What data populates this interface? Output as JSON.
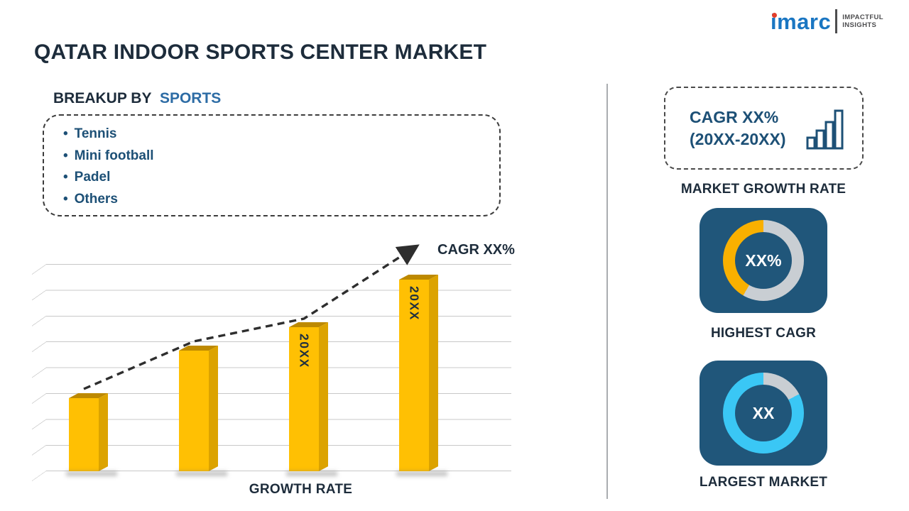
{
  "header": {
    "title": "QATAR INDOOR SPORTS CENTER MARKET",
    "logo": {
      "brand": "imarc",
      "tagline1": "IMPACTFUL",
      "tagline2": "INSIGHTS"
    }
  },
  "breakup": {
    "heading_prefix": "BREAKUP BY",
    "heading_highlight": "SPORTS",
    "bullet": "•",
    "items": [
      "Tennis",
      "Mini football",
      "Padel",
      "Others"
    ]
  },
  "chart_data": {
    "type": "bar",
    "title": "",
    "categories": [
      "",
      "",
      "20XX",
      "20XX"
    ],
    "values": [
      38,
      63,
      75,
      100
    ],
    "ylim": [
      0,
      100
    ],
    "grid": true,
    "bar_color": "#FFC003",
    "xlabel": "GROWTH RATE",
    "ylabel": "",
    "annotation": "CAGR XX%",
    "trend_line": {
      "style": "dashed-arrow",
      "direction": "up"
    }
  },
  "sidebar": {
    "growth_box": {
      "line1": "CAGR XX%",
      "line2": "(20XX-20XX)"
    },
    "market_growth_label": "MARKET GROWTH RATE",
    "highest_cagr": {
      "value": "XX%",
      "label": "HIGHEST CAGR",
      "accent": "#F9B000",
      "gray_deg": 210
    },
    "largest_market": {
      "value": "XX",
      "label": "LARGEST MARKET",
      "accent": "#3AC7F5",
      "gray_deg": 62
    }
  },
  "colors": {
    "heading_dark": "#1D2C3B",
    "accent_blue": "#1D5076",
    "highlight_blue": "#2D6CA5",
    "bar_gold": "#FFC003",
    "card_blue": "#20567A",
    "ring_gray": "#C9CED3",
    "logo_blue": "#1A76C2"
  }
}
